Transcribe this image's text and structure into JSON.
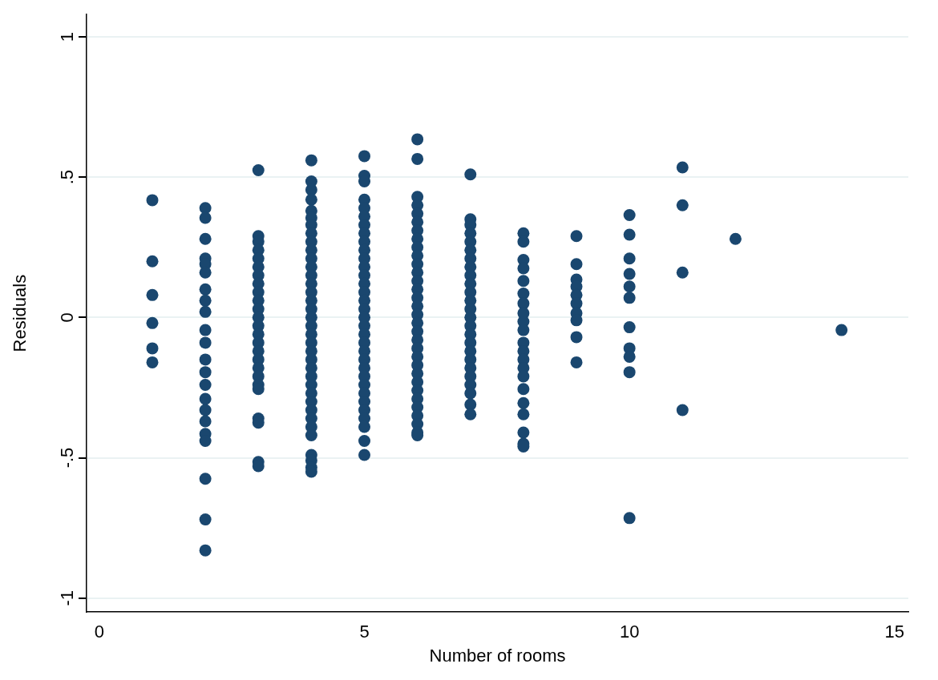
{
  "chart_data": {
    "type": "scatter",
    "xlabel": "Number of rooms",
    "ylabel": "Residuals",
    "xlim": [
      -0.24,
      15.26
    ],
    "ylim": [
      -1.05,
      1.08
    ],
    "xticks": [
      0,
      5,
      10,
      15
    ],
    "yticks": [
      {
        "value": -1,
        "label": "-1"
      },
      {
        "value": -0.5,
        "label": "-.5"
      },
      {
        "value": 0,
        "label": "0"
      },
      {
        "value": 0.5,
        "label": ".5"
      },
      {
        "value": 1,
        "label": "1"
      }
    ],
    "grid": "y",
    "marker": "circle",
    "legend": false,
    "series": [
      {
        "color": "#1a476f",
        "x": [
          1,
          1,
          1,
          1,
          1,
          1,
          2,
          2,
          2,
          2,
          2,
          2,
          2,
          2,
          2,
          2,
          2,
          2,
          2,
          2,
          2,
          2,
          2,
          2,
          2,
          2,
          2,
          2,
          3,
          3,
          3,
          3,
          3,
          3,
          3,
          3,
          3,
          3,
          3,
          3,
          3,
          3,
          3,
          3,
          3,
          3,
          3,
          3,
          3,
          3,
          3,
          3,
          3,
          4,
          4,
          4,
          4,
          4,
          4,
          4,
          4,
          4,
          4,
          4,
          4,
          4,
          4,
          4,
          4,
          4,
          4,
          4,
          4,
          4,
          4,
          4,
          4,
          4,
          4,
          4,
          4,
          4,
          4,
          4,
          4,
          4,
          4,
          4,
          4,
          5,
          5,
          5,
          5,
          5,
          5,
          5,
          5,
          5,
          5,
          5,
          5,
          5,
          5,
          5,
          5,
          5,
          5,
          5,
          5,
          5,
          5,
          5,
          5,
          5,
          5,
          5,
          5,
          5,
          5,
          5,
          5,
          5,
          6,
          6,
          6,
          6,
          6,
          6,
          6,
          6,
          6,
          6,
          6,
          6,
          6,
          6,
          6,
          6,
          6,
          6,
          6,
          6,
          6,
          6,
          6,
          6,
          6,
          6,
          6,
          6,
          6,
          6,
          6,
          6,
          7,
          7,
          7,
          7,
          7,
          7,
          7,
          7,
          7,
          7,
          7,
          7,
          7,
          7,
          7,
          7,
          7,
          7,
          7,
          7,
          7,
          7,
          7,
          7,
          7,
          8,
          8,
          8,
          8,
          8,
          8,
          8,
          8,
          8,
          8,
          8,
          8,
          8,
          8,
          8,
          8,
          8,
          8,
          8,
          8,
          8,
          9,
          9,
          9,
          9,
          9,
          9,
          9,
          9,
          9,
          9,
          10,
          10,
          10,
          10,
          10,
          10,
          10,
          10,
          10,
          10,
          10,
          11,
          11,
          11,
          11,
          12,
          14
        ],
        "values": [
          0.418,
          0.2,
          0.08,
          -0.02,
          -0.11,
          -0.16,
          0.39,
          0.355,
          0.28,
          0.21,
          0.19,
          0.16,
          0.1,
          0.06,
          0.02,
          -0.045,
          -0.09,
          -0.15,
          -0.195,
          -0.24,
          -0.29,
          -0.33,
          -0.37,
          -0.415,
          -0.44,
          -0.575,
          -0.72,
          -0.83,
          0.525,
          0.29,
          0.27,
          0.24,
          0.21,
          0.18,
          0.15,
          0.12,
          0.09,
          0.06,
          0.03,
          0,
          -0.03,
          -0.06,
          -0.09,
          -0.12,
          -0.15,
          -0.18,
          -0.21,
          -0.24,
          -0.255,
          -0.36,
          -0.375,
          -0.515,
          -0.53,
          0.56,
          0.485,
          0.455,
          0.42,
          0.38,
          0.355,
          0.33,
          0.3,
          0.27,
          0.24,
          0.21,
          0.18,
          0.15,
          0.12,
          0.09,
          0.06,
          0.03,
          0,
          -0.03,
          -0.06,
          -0.09,
          -0.12,
          -0.15,
          -0.18,
          -0.21,
          -0.24,
          -0.27,
          -0.3,
          -0.33,
          -0.36,
          -0.39,
          -0.42,
          -0.49,
          -0.51,
          -0.535,
          -0.55,
          0.575,
          0.505,
          0.485,
          0.42,
          0.39,
          0.36,
          0.33,
          0.3,
          0.27,
          0.24,
          0.21,
          0.18,
          0.15,
          0.12,
          0.09,
          0.06,
          0.03,
          0,
          -0.03,
          -0.06,
          -0.09,
          -0.12,
          -0.15,
          -0.18,
          -0.21,
          -0.24,
          -0.27,
          -0.3,
          -0.33,
          -0.36,
          -0.39,
          -0.44,
          -0.49,
          0.635,
          0.565,
          0.43,
          0.4,
          0.37,
          0.34,
          0.31,
          0.28,
          0.25,
          0.22,
          0.19,
          0.16,
          0.13,
          0.1,
          0.07,
          0.04,
          0.01,
          -0.02,
          -0.05,
          -0.08,
          -0.11,
          -0.14,
          -0.17,
          -0.2,
          -0.23,
          -0.26,
          -0.29,
          -0.32,
          -0.35,
          -0.38,
          -0.41,
          -0.42,
          0.51,
          0.35,
          0.33,
          0.3,
          0.27,
          0.24,
          0.21,
          0.18,
          0.15,
          0.12,
          0.09,
          0.06,
          0.03,
          0,
          -0.03,
          -0.06,
          -0.09,
          -0.12,
          -0.15,
          -0.18,
          -0.21,
          -0.24,
          -0.27,
          -0.31,
          -0.345,
          0.3,
          0.27,
          0.205,
          0.175,
          0.13,
          0.085,
          0.05,
          0.015,
          -0.015,
          -0.045,
          -0.09,
          -0.12,
          -0.15,
          -0.18,
          -0.21,
          -0.255,
          -0.305,
          -0.345,
          -0.41,
          -0.45,
          -0.46,
          0.29,
          0.19,
          0.135,
          0.11,
          0.08,
          0.05,
          0.015,
          -0.01,
          -0.07,
          -0.16,
          0.365,
          0.295,
          0.21,
          0.155,
          0.11,
          0.07,
          -0.035,
          -0.11,
          -0.14,
          -0.195,
          -0.715,
          0.535,
          0.4,
          0.16,
          -0.33,
          0.28,
          -0.045
        ]
      }
    ]
  }
}
